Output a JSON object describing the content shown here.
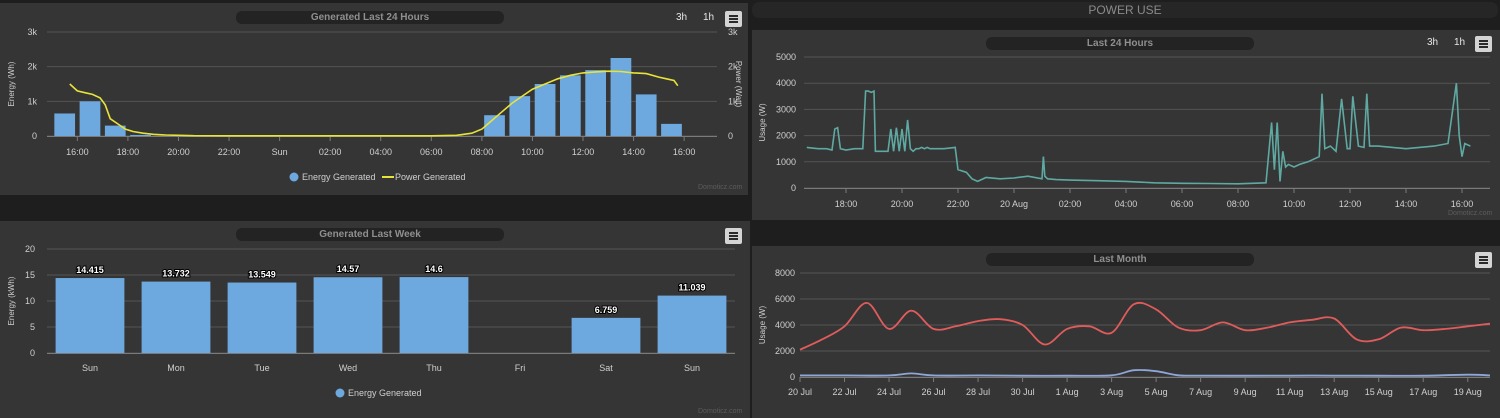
{
  "left": {
    "top_chart": {
      "title": "Generated Last 24 Hours",
      "ranges": [
        "3h",
        "1h"
      ],
      "credit": "Domoticz.com"
    },
    "bottom_chart": {
      "title": "Generated Last Week",
      "credit": "Domoticz.com"
    }
  },
  "right": {
    "header": "POWER USE",
    "top_chart": {
      "title": "Last 24 Hours",
      "ranges": [
        "3h",
        "1h"
      ],
      "credit": "Domoticz.com"
    },
    "bottom_chart": {
      "title": "Last Month"
    }
  },
  "colors": {
    "energy": "#6da8de",
    "power": "#e8e33a",
    "usage": "#5fa9a3",
    "max": "#e05c5c",
    "min": "#8fa6d8"
  },
  "chart_data": [
    {
      "id": "generated-24h",
      "type": "bar",
      "title": "Generated Last 24 Hours",
      "x_tick_labels": [
        "16:00",
        "18:00",
        "20:00",
        "22:00",
        "Sun",
        "02:00",
        "04:00",
        "06:00",
        "08:00",
        "10:00",
        "12:00",
        "14:00",
        "16:00"
      ],
      "x_tick_hours": [
        0,
        2,
        4,
        6,
        8,
        10,
        12,
        14,
        16,
        18,
        20,
        22,
        24
      ],
      "xlim": [
        -1.2,
        25.3
      ],
      "ylabel": "Energy (Wh)",
      "ylabel_right": "Power (Watt)",
      "yticks": [
        "0",
        "1k",
        "2k",
        "3k"
      ],
      "ylim": [
        0,
        3000
      ],
      "ylim_right": [
        0,
        3000
      ],
      "legend": [
        "Energy Generated",
        "Power Generated"
      ],
      "legend_position": "bottom",
      "series": [
        {
          "name": "Energy Generated",
          "kind": "bar",
          "axis": "left",
          "x": [
            -0.5,
            0.5,
            1.5,
            2.5,
            16.5,
            17.5,
            18.5,
            19.5,
            20.5,
            21.5,
            22.5,
            23.5
          ],
          "values": [
            650,
            1000,
            300,
            30,
            600,
            1150,
            1500,
            1750,
            1900,
            2250,
            1200,
            350
          ]
        },
        {
          "name": "Power Generated",
          "kind": "line",
          "axis": "right",
          "x": [
            -0.3,
            0.0,
            0.3,
            0.6,
            0.9,
            1.1,
            1.3,
            1.6,
            1.9,
            2.2,
            2.6,
            3.0,
            3.5,
            4.0,
            4.6,
            6,
            8,
            10,
            12,
            14,
            15.0,
            15.6,
            16.0,
            16.4,
            16.8,
            17.2,
            17.6,
            18.0,
            18.5,
            19.0,
            19.5,
            20.0,
            20.5,
            21.0,
            21.5,
            22.0,
            22.5,
            23.0,
            23.3,
            23.6,
            23.75
          ],
          "values": [
            1500,
            1300,
            1250,
            1200,
            1100,
            900,
            500,
            350,
            200,
            130,
            80,
            50,
            30,
            20,
            10,
            5,
            5,
            5,
            5,
            5,
            20,
            80,
            200,
            450,
            700,
            950,
            1150,
            1350,
            1500,
            1650,
            1750,
            1820,
            1850,
            1870,
            1860,
            1820,
            1800,
            1700,
            1650,
            1600,
            1450
          ]
        }
      ]
    },
    {
      "id": "generated-week",
      "type": "bar",
      "title": "Generated Last Week",
      "categories": [
        "Sun",
        "Mon",
        "Tue",
        "Wed",
        "Thu",
        "Fri",
        "Sat",
        "Sun"
      ],
      "ylabel": "Energy (kWh)",
      "yticks": [
        0,
        5,
        10,
        15,
        20
      ],
      "ylim": [
        0,
        20
      ],
      "legend": [
        "Energy Generated"
      ],
      "legend_position": "bottom",
      "series": [
        {
          "name": "Energy Generated",
          "values": [
            14.415,
            13.732,
            13.549,
            14.57,
            14.6,
            null,
            6.759,
            11.039
          ],
          "labels": [
            "14.415",
            "13.732",
            "13.549",
            "14.57",
            "14.6",
            "",
            "6.759",
            "11.039"
          ]
        }
      ]
    },
    {
      "id": "usage-24h",
      "type": "line",
      "title": "Last 24 Hours",
      "x_tick_labels": [
        "18:00",
        "20:00",
        "22:00",
        "20 Aug",
        "02:00",
        "04:00",
        "06:00",
        "08:00",
        "10:00",
        "12:00",
        "14:00",
        "16:00"
      ],
      "x_tick_hours": [
        0,
        2,
        4,
        6,
        8,
        10,
        12,
        14,
        16,
        18,
        20,
        22
      ],
      "xlim": [
        -1.5,
        23.0
      ],
      "ylabel": "Usage (W)",
      "yticks": [
        0,
        1000,
        2000,
        3000,
        4000,
        5000
      ],
      "ylim": [
        0,
        5000
      ],
      "series": [
        {
          "name": "Usage",
          "x": [
            -1.4,
            -1.0,
            -0.7,
            -0.5,
            -0.4,
            -0.3,
            -0.2,
            0.0,
            0.3,
            0.6,
            0.7,
            0.8,
            0.9,
            1.0,
            1.05,
            1.5,
            1.6,
            1.7,
            1.8,
            1.9,
            2.0,
            2.1,
            2.2,
            2.3,
            2.4,
            2.5,
            2.6,
            2.7,
            2.8,
            2.9,
            3.0,
            3.5,
            3.9,
            4.0,
            4.3,
            4.5,
            4.7,
            5.0,
            5.5,
            6.0,
            6.5,
            7.0,
            7.05,
            7.1,
            7.2,
            7.5,
            8,
            9,
            10,
            11,
            12,
            13,
            14,
            15,
            15.2,
            15.3,
            15.4,
            15.5,
            15.6,
            15.7,
            15.8,
            16.0,
            16.2,
            16.5,
            16.9,
            17.0,
            17.1,
            17.3,
            17.5,
            17.7,
            17.9,
            18.0,
            18.1,
            18.3,
            18.5,
            18.6,
            18.7,
            19,
            20,
            21,
            21.5,
            21.8,
            21.9,
            22.0,
            22.1,
            22.3
          ],
          "values": [
            1550,
            1500,
            1500,
            1450,
            2250,
            2300,
            1500,
            1450,
            1500,
            1500,
            3700,
            3700,
            3650,
            3700,
            1400,
            1400,
            2250,
            1400,
            2300,
            1400,
            2250,
            1400,
            2600,
            1500,
            1400,
            1500,
            1500,
            1550,
            1500,
            1550,
            1500,
            1500,
            1550,
            700,
            600,
            350,
            250,
            400,
            350,
            380,
            450,
            350,
            1200,
            450,
            350,
            320,
            300,
            280,
            250,
            200,
            180,
            170,
            160,
            200,
            2500,
            700,
            2500,
            250,
            1400,
            800,
            900,
            800,
            900,
            1000,
            1200,
            3600,
            1500,
            1600,
            1400,
            3400,
            1500,
            1500,
            3500,
            1600,
            1550,
            3600,
            1600,
            1600,
            1500,
            1600,
            1700,
            4000,
            2000,
            1200,
            1700,
            1600
          ]
        }
      ]
    },
    {
      "id": "usage-month",
      "type": "line",
      "title": "Last Month",
      "x_tick_labels": [
        "20 Jul",
        "22 Jul",
        "24 Jul",
        "26 Jul",
        "28 Jul",
        "30 Jul",
        "1 Aug",
        "3 Aug",
        "5 Aug",
        "7 Aug",
        "9 Aug",
        "11 Aug",
        "13 Aug",
        "15 Aug",
        "17 Aug",
        "19 Aug"
      ],
      "x_tick_days": [
        0,
        2,
        4,
        6,
        8,
        10,
        12,
        14,
        16,
        18,
        20,
        22,
        24,
        26,
        28,
        30
      ],
      "xlim": [
        0,
        31
      ],
      "ylabel": "Usage (W)",
      "yticks": [
        0,
        2000,
        4000,
        6000,
        8000
      ],
      "ylim": [
        0,
        8000
      ],
      "series": [
        {
          "name": "",
          "kind": "max",
          "x": [
            0,
            1,
            2,
            3,
            4,
            5,
            6,
            7,
            8,
            9,
            10,
            11,
            12,
            13,
            14,
            15,
            16,
            17,
            18,
            19,
            20,
            21,
            22,
            23,
            24,
            25,
            26,
            27,
            28,
            29,
            30,
            31
          ],
          "values": [
            2100,
            2900,
            3900,
            5700,
            3700,
            5100,
            3700,
            3900,
            4300,
            4450,
            4000,
            2500,
            3700,
            3900,
            3400,
            5600,
            5200,
            3800,
            3600,
            4200,
            3600,
            3800,
            4200,
            4400,
            4500,
            2900,
            2900,
            3800,
            3600,
            3700,
            3900,
            4100
          ]
        },
        {
          "name": "",
          "kind": "min",
          "x": [
            0,
            2,
            4,
            5,
            6,
            8,
            10,
            12,
            14,
            15,
            16,
            17,
            18,
            20,
            22,
            24,
            26,
            28,
            30,
            31
          ],
          "values": [
            120,
            120,
            120,
            280,
            120,
            120,
            100,
            100,
            130,
            520,
            450,
            130,
            110,
            100,
            110,
            110,
            100,
            100,
            180,
            120
          ]
        }
      ]
    }
  ]
}
